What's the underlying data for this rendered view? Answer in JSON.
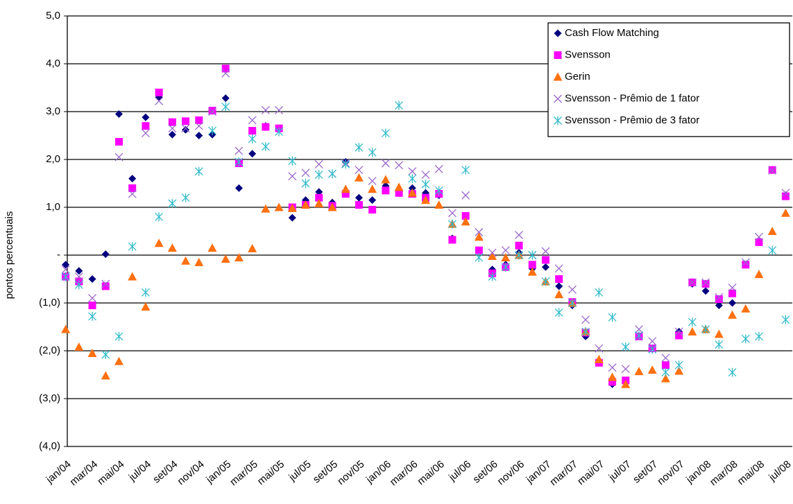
{
  "chart_data": {
    "type": "scatter",
    "y_label": "pontos percentuais",
    "categories": [
      "jan/04",
      null,
      "mar/04",
      null,
      "mai/04",
      null,
      "jul/04",
      null,
      "set/04",
      null,
      "nov/04",
      null,
      "jan/05",
      null,
      "mar/05",
      null,
      "mai/05",
      null,
      "jul/05",
      null,
      "set/05",
      null,
      "nov/05",
      null,
      "jan/06",
      null,
      "mar/06",
      null,
      "mai/06",
      null,
      "jul/06",
      null,
      "set/06",
      null,
      "nov/06",
      null,
      "jan/07",
      null,
      "mar/07",
      null,
      "mai/07",
      null,
      "jul/07",
      null,
      "set/07",
      null,
      "nov/07",
      null,
      "jan/08",
      null,
      "mar/08",
      null,
      "mai/08",
      null,
      "jul/08"
    ],
    "ylim": [
      -4,
      5
    ],
    "yticks": [
      {
        "value": 5,
        "label": "5,0"
      },
      {
        "value": 4,
        "label": "4,0"
      },
      {
        "value": 3,
        "label": "3,0"
      },
      {
        "value": 2,
        "label": "2,0"
      },
      {
        "value": 1,
        "label": "1,0"
      },
      {
        "value": 0,
        "label": "-"
      },
      {
        "value": -1,
        "label": "(1,0)"
      },
      {
        "value": -2,
        "label": "(2,0)"
      },
      {
        "value": -3,
        "label": "(3,0)"
      },
      {
        "value": -4,
        "label": "(4,0)"
      }
    ],
    "grid": true,
    "legend": "upper right",
    "series": [
      {
        "name": "Cash Flow Matching",
        "color": "#000080",
        "marker": "diamond",
        "values": [
          -0.2,
          -0.33,
          -0.5,
          0.02,
          2.95,
          1.6,
          2.88,
          3.3,
          2.52,
          2.62,
          2.5,
          2.52,
          3.28,
          1.4,
          2.12,
          2.7,
          2.65,
          0.78,
          1.15,
          1.32,
          1.1,
          1.95,
          1.2,
          1.15,
          1.45,
          1.35,
          1.4,
          1.3,
          1.25,
          0.35,
          0.82,
          0.1,
          -0.3,
          -0.2,
          0.05,
          -0.28,
          -0.25,
          -0.65,
          -1.05,
          -1.7,
          -2.25,
          -2.7,
          -2.65,
          -1.7,
          -1.95,
          -2.3,
          -1.6,
          -0.6,
          -0.75,
          -1.05,
          -1.0,
          -0.2,
          0.28,
          1.78,
          1.25
        ]
      },
      {
        "name": "Svensson",
        "color": "#ff00ff",
        "marker": "square",
        "values": [
          -0.45,
          -0.55,
          -1.05,
          -0.65,
          2.37,
          1.4,
          2.7,
          3.4,
          2.78,
          2.8,
          2.82,
          3.02,
          3.9,
          1.92,
          2.6,
          2.68,
          2.65,
          1.0,
          1.05,
          1.2,
          1.03,
          1.28,
          1.05,
          0.95,
          1.35,
          1.3,
          1.28,
          1.2,
          1.28,
          0.32,
          0.82,
          0.1,
          -0.38,
          -0.25,
          0.2,
          -0.2,
          -0.1,
          -0.5,
          -0.98,
          -1.62,
          -2.25,
          -2.65,
          -2.62,
          -1.7,
          -1.95,
          -2.3,
          -1.68,
          -0.57,
          -0.6,
          -0.92,
          -0.8,
          -0.2,
          0.27,
          1.78,
          1.23
        ]
      },
      {
        "name": "Gerin",
        "color": "#ff7010",
        "marker": "triangle",
        "values": [
          -1.55,
          -1.92,
          -2.05,
          -2.52,
          -2.22,
          -0.45,
          -1.08,
          0.25,
          0.15,
          -0.12,
          -0.15,
          0.15,
          -0.08,
          -0.05,
          0.14,
          0.97,
          1.0,
          0.98,
          1.05,
          1.08,
          1.0,
          1.38,
          1.62,
          1.38,
          1.58,
          1.42,
          1.3,
          1.15,
          1.05,
          0.65,
          0.7,
          0.38,
          -0.02,
          -0.05,
          0.0,
          -0.35,
          -0.55,
          -0.82,
          -1.0,
          -1.6,
          -2.18,
          -2.55,
          -2.7,
          -2.43,
          -2.4,
          -2.58,
          -2.42,
          -1.6,
          -1.55,
          -1.65,
          -1.25,
          -1.12,
          -0.4,
          0.5,
          0.88
        ]
      },
      {
        "name": "Svensson - Prêmio de 1 fator",
        "color": "#9966cc",
        "marker": "x",
        "values": [
          -0.3,
          -0.45,
          -0.9,
          -0.6,
          2.05,
          1.28,
          2.55,
          3.22,
          2.65,
          2.65,
          2.7,
          3.0,
          3.8,
          2.18,
          2.82,
          3.03,
          3.03,
          1.65,
          1.72,
          1.9,
          1.7,
          1.92,
          1.78,
          1.55,
          1.92,
          1.88,
          1.75,
          1.68,
          1.8,
          0.88,
          1.25,
          0.48,
          0.05,
          0.1,
          0.42,
          0.0,
          0.08,
          -0.28,
          -0.72,
          -1.35,
          -1.95,
          -2.35,
          -2.38,
          -1.55,
          -1.8,
          -2.15,
          -1.6,
          -0.57,
          -0.57,
          -0.88,
          -0.68,
          -0.15,
          0.38,
          1.77,
          1.3
        ]
      },
      {
        "name": "Svensson - Prêmio de 3 fator",
        "color": "#33bbcc",
        "marker": "star",
        "values": [
          -0.45,
          -0.62,
          -1.28,
          -2.08,
          -1.7,
          0.18,
          -0.78,
          0.8,
          1.08,
          1.2,
          1.75,
          2.6,
          3.1,
          1.95,
          2.43,
          2.27,
          2.58,
          1.97,
          1.5,
          1.68,
          1.7,
          1.9,
          2.25,
          2.15,
          2.55,
          3.13,
          1.6,
          1.48,
          1.35,
          0.65,
          1.78,
          -0.05,
          -0.45,
          -0.25,
          0.0,
          0.0,
          -0.55,
          -1.2,
          -1.0,
          -1.6,
          -0.78,
          -1.3,
          -1.92,
          -1.68,
          -1.97,
          -2.45,
          -2.3,
          -1.4,
          -1.55,
          -1.87,
          -2.45,
          -1.75,
          -1.7,
          0.1,
          -1.35
        ]
      }
    ]
  }
}
